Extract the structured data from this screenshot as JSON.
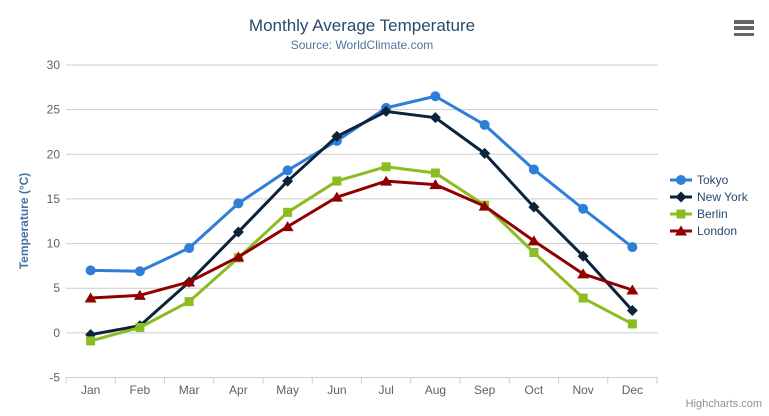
{
  "header": {
    "title": "Monthly Average Temperature",
    "subtitle": "Source: WorldClimate.com"
  },
  "chart_data": {
    "type": "line",
    "title": "Monthly Average Temperature",
    "subtitle": "Source: WorldClimate.com",
    "categories": [
      "Jan",
      "Feb",
      "Mar",
      "Apr",
      "May",
      "Jun",
      "Jul",
      "Aug",
      "Sep",
      "Oct",
      "Nov",
      "Dec"
    ],
    "series": [
      {
        "name": "Tokyo",
        "color": "#2f7ed8",
        "marker": "circle",
        "values": [
          7.0,
          6.9,
          9.5,
          14.5,
          18.2,
          21.5,
          25.2,
          26.5,
          23.3,
          18.3,
          13.9,
          9.6
        ]
      },
      {
        "name": "New York",
        "color": "#0d233a",
        "marker": "diamond",
        "values": [
          -0.2,
          0.8,
          5.7,
          11.3,
          17.0,
          22.0,
          24.8,
          24.1,
          20.1,
          14.1,
          8.6,
          2.5
        ]
      },
      {
        "name": "Berlin",
        "color": "#8bbc21",
        "marker": "square",
        "values": [
          -0.9,
          0.6,
          3.5,
          8.4,
          13.5,
          17.0,
          18.6,
          17.9,
          14.3,
          9.0,
          3.9,
          1.0
        ]
      },
      {
        "name": "London",
        "color": "#910000",
        "marker": "triangle",
        "values": [
          3.9,
          4.2,
          5.7,
          8.5,
          11.9,
          15.2,
          17.0,
          16.6,
          14.2,
          10.3,
          6.6,
          4.8
        ]
      }
    ],
    "xlabel": "",
    "ylabel": "Temperature (°C)",
    "ylim": [
      -5,
      30
    ],
    "yticks": [
      -5,
      0,
      5,
      10,
      15,
      20,
      25,
      30
    ],
    "grid": true,
    "legend_position": "right"
  },
  "colors": {
    "title": "#274b6d",
    "subtitle": "#4d759e",
    "y_axis_title": "#4572a7",
    "tick_label": "#606060",
    "gridline": "#cccccc",
    "axis_line": "#c0d0e0",
    "legend_text": "#274b6d",
    "credits": "#909090"
  },
  "menu": {
    "icon": "hamburger-menu"
  },
  "credits": {
    "label": "Highcharts.com"
  }
}
